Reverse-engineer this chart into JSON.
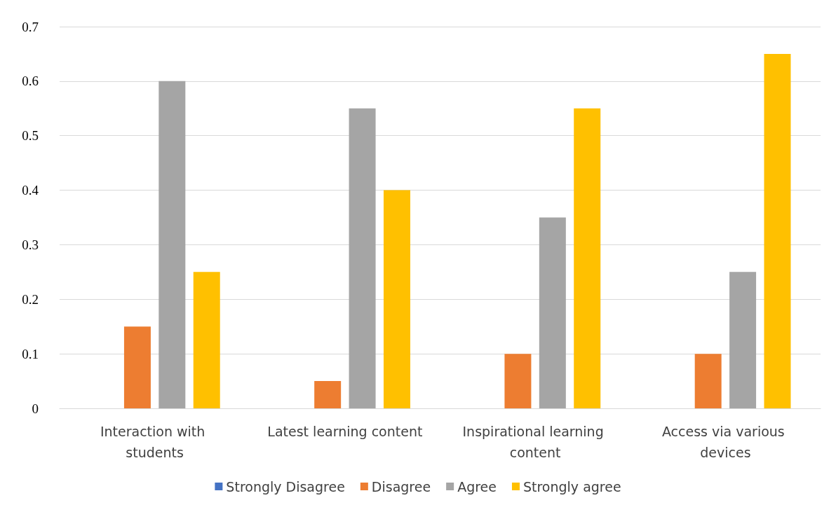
{
  "chart_data": {
    "type": "bar",
    "categories": [
      "Interaction with students",
      "Latest learning content",
      "Inspirational learning content",
      "Access via various devices"
    ],
    "series": [
      {
        "name": "Strongly Disagree",
        "color": "#4472c4",
        "values": [
          0,
          0,
          0,
          0
        ]
      },
      {
        "name": "Disagree",
        "color": "#ed7d31",
        "values": [
          0.15,
          0.05,
          0.1,
          0.1
        ]
      },
      {
        "name": "Agree",
        "color": "#a5a5a5",
        "values": [
          0.6,
          0.55,
          0.35,
          0.25
        ]
      },
      {
        "name": "Strongly agree",
        "color": "#ffc000",
        "values": [
          0.25,
          0.4,
          0.55,
          0.65
        ]
      }
    ],
    "ylim": [
      0,
      0.7
    ],
    "yticks": [
      0,
      0.1,
      0.2,
      0.3,
      0.4,
      0.5,
      0.6,
      0.7
    ],
    "grid": "y",
    "legend": "bottom"
  }
}
